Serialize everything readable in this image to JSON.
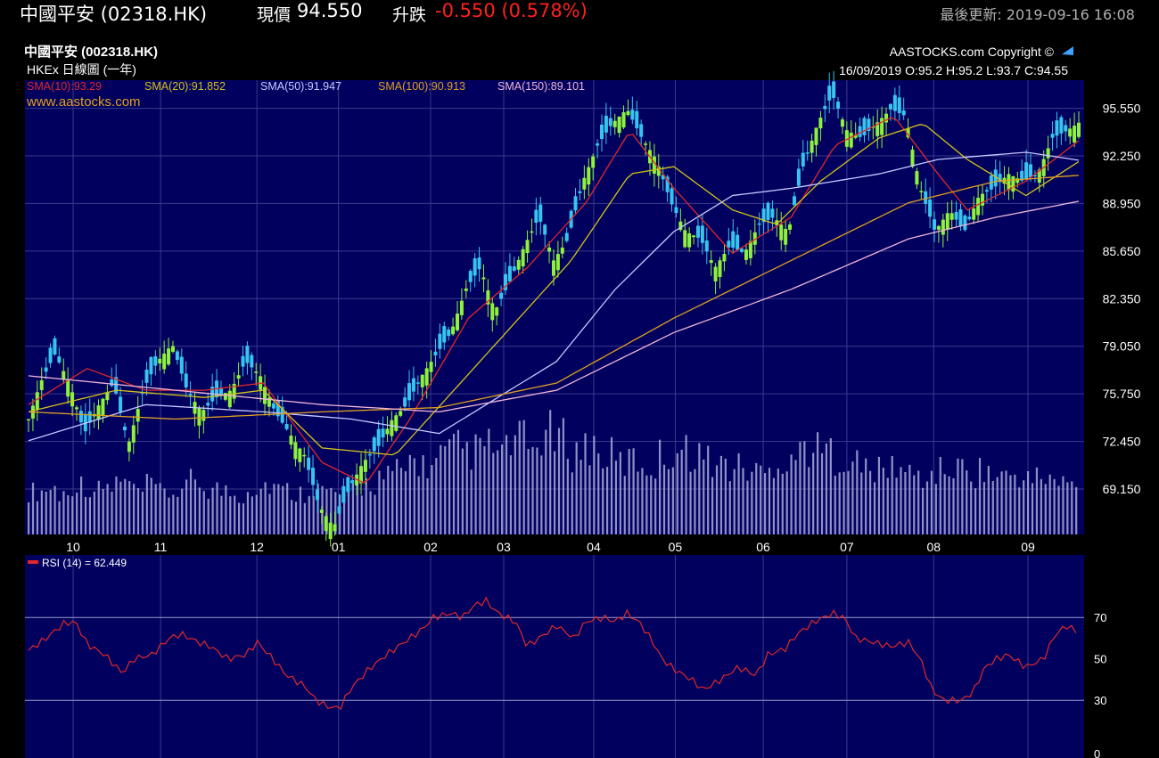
{
  "header": {
    "stock_name": "中國平安 (02318.HK)",
    "price_label": "現價",
    "price": "94.550",
    "change_label": "升跌",
    "change": "-0.550 (0.578%)",
    "last_update": "最後更新: 2019-09-16 16:08"
  },
  "chart_info": {
    "title": "中國平安 (002318.HK)",
    "subtitle": "HKEx 日線圖 (一年)",
    "copyright": "AASTOCKS.com Copyright ©",
    "ohlc": "16/09/2019   O:95.2  H:95.2  L:93.7  C:94.55",
    "website": "www.aastocks.com",
    "sma_legend": [
      {
        "text": "SMA(10):93.29",
        "color": "#e0282a"
      },
      {
        "text": "SMA(20):91.852",
        "color": "#d4c21a"
      },
      {
        "text": "SMA(50):91.947",
        "color": "#c6c8ff"
      },
      {
        "text": "SMA(100):90.913",
        "color": "#e0a020"
      },
      {
        "text": "SMA(150):89.101",
        "color": "#f0b6d8"
      }
    ],
    "rsi_label": "RSI (14)  = 62.449"
  },
  "colors": {
    "background": "#000000",
    "plot_bg": "#01005e",
    "grid": "#3a3a8c",
    "up_candle": "#8ef23a",
    "down_candle": "#37c5f0",
    "volume": "#a9a9d8",
    "rsi_line": "#e0282a"
  },
  "chart_data": [
    {
      "type": "candlestick",
      "xaxis": [
        "10",
        "11",
        "12",
        "01",
        "02",
        "03",
        "04",
        "05",
        "06",
        "07",
        "08",
        "09"
      ],
      "yaxis_ticks": [
        "95.550",
        "92.250",
        "88.950",
        "85.650",
        "82.350",
        "79.050",
        "75.750",
        "72.450",
        "69.150"
      ],
      "ylim": [
        66.0,
        97.5
      ],
      "close_path": [
        [
          0,
          74.0
        ],
        [
          4,
          76.5
        ],
        [
          9,
          78.5
        ],
        [
          14,
          76.5
        ],
        [
          19,
          73.0
        ],
        [
          24,
          75.0
        ],
        [
          29,
          76.5
        ],
        [
          34,
          72.2
        ],
        [
          39,
          76.0
        ],
        [
          44,
          78.0
        ],
        [
          49,
          79.2
        ],
        [
          54,
          76.0
        ],
        [
          59,
          74.5
        ],
        [
          64,
          75.5
        ],
        [
          69,
          76.0
        ],
        [
          74,
          78.0
        ],
        [
          79,
          77.0
        ],
        [
          84,
          74.5
        ],
        [
          89,
          73.0
        ],
        [
          94,
          71.5
        ],
        [
          99,
          68.0
        ],
        [
          104,
          66.5
        ],
        [
          109,
          69.0
        ],
        [
          114,
          71.0
        ],
        [
          119,
          72.0
        ],
        [
          124,
          74.0
        ],
        [
          129,
          75.0
        ],
        [
          134,
          77.0
        ],
        [
          139,
          78.5
        ],
        [
          144,
          80.0
        ],
        [
          149,
          83.0
        ],
        [
          154,
          84.5
        ],
        [
          159,
          81.5
        ],
        [
          164,
          83.5
        ],
        [
          169,
          86.0
        ],
        [
          174,
          88.0
        ],
        [
          179,
          85.0
        ],
        [
          184,
          86.5
        ],
        [
          189,
          90.5
        ],
        [
          194,
          93.0
        ],
        [
          199,
          94.5
        ],
        [
          204,
          95.5
        ],
        [
          209,
          93.5
        ],
        [
          214,
          92.0
        ],
        [
          219,
          89.0
        ],
        [
          224,
          87.0
        ],
        [
          229,
          86.5
        ],
        [
          234,
          84.5
        ],
        [
          239,
          86.0
        ],
        [
          244,
          85.5
        ],
        [
          249,
          87.5
        ],
        [
          254,
          88.0
        ],
        [
          259,
          87.0
        ],
        [
          264,
          91.5
        ],
        [
          269,
          94.5
        ],
        [
          274,
          96.5
        ],
        [
          279,
          94.0
        ],
        [
          284,
          93.5
        ],
        [
          289,
          94.5
        ],
        [
          294,
          95.5
        ],
        [
          299,
          95.0
        ],
        [
          304,
          90.0
        ],
        [
          309,
          87.0
        ],
        [
          314,
          88.5
        ],
        [
          319,
          87.0
        ],
        [
          324,
          89.5
        ],
        [
          329,
          90.0
        ],
        [
          334,
          91.0
        ],
        [
          339,
          90.5
        ],
        [
          344,
          91.0
        ],
        [
          349,
          93.5
        ],
        [
          354,
          94.0
        ],
        [
          358,
          94.55
        ]
      ],
      "sma": [
        {
          "name": "SMA(10)",
          "points": [
            [
              0,
              75
            ],
            [
              20,
              77.5
            ],
            [
              40,
              76
            ],
            [
              60,
              76
            ],
            [
              80,
              76.5
            ],
            [
              100,
              71
            ],
            [
              115,
              69.5
            ],
            [
              130,
              74
            ],
            [
              150,
              81
            ],
            [
              170,
              84.5
            ],
            [
              190,
              89
            ],
            [
              205,
              94
            ],
            [
              220,
              90
            ],
            [
              240,
              85.5
            ],
            [
              260,
              88
            ],
            [
              275,
              93
            ],
            [
              295,
              95
            ],
            [
              310,
              91
            ],
            [
              320,
              88.5
            ],
            [
              340,
              90.5
            ],
            [
              358,
              93.3
            ]
          ]
        },
        {
          "name": "SMA(20)",
          "points": [
            [
              0,
              74.5
            ],
            [
              30,
              76
            ],
            [
              60,
              75.5
            ],
            [
              80,
              76
            ],
            [
              100,
              72
            ],
            [
              125,
              71.5
            ],
            [
              145,
              76
            ],
            [
              165,
              80.5
            ],
            [
              185,
              85
            ],
            [
              205,
              91
            ],
            [
              220,
              91.5
            ],
            [
              240,
              88.5
            ],
            [
              255,
              87.5
            ],
            [
              270,
              90.5
            ],
            [
              290,
              93.5
            ],
            [
              305,
              94.5
            ],
            [
              320,
              92
            ],
            [
              340,
              89.5
            ],
            [
              358,
              91.85
            ]
          ]
        },
        {
          "name": "SMA(50)",
          "points": [
            [
              0,
              72.5
            ],
            [
              40,
              75
            ],
            [
              80,
              74.5
            ],
            [
              110,
              74
            ],
            [
              140,
              73
            ],
            [
              160,
              75.5
            ],
            [
              180,
              78
            ],
            [
              200,
              83
            ],
            [
              220,
              87
            ],
            [
              240,
              89.5
            ],
            [
              260,
              90
            ],
            [
              290,
              91
            ],
            [
              310,
              92
            ],
            [
              340,
              92.5
            ],
            [
              358,
              91.95
            ]
          ]
        },
        {
          "name": "SMA(100)",
          "points": [
            [
              0,
              74.5
            ],
            [
              50,
              74
            ],
            [
              100,
              74.5
            ],
            [
              140,
              74.8
            ],
            [
              180,
              76.5
            ],
            [
              220,
              81
            ],
            [
              260,
              85
            ],
            [
              300,
              89
            ],
            [
              330,
              90.5
            ],
            [
              358,
              90.9
            ]
          ]
        },
        {
          "name": "SMA(150)",
          "points": [
            [
              0,
              77
            ],
            [
              50,
              76
            ],
            [
              100,
              75
            ],
            [
              140,
              74.5
            ],
            [
              180,
              76
            ],
            [
              220,
              80
            ],
            [
              260,
              83
            ],
            [
              300,
              86.5
            ],
            [
              330,
              88
            ],
            [
              358,
              89.1
            ]
          ]
        }
      ]
    },
    {
      "type": "line",
      "name": "RSI (14)",
      "ylim": [
        0,
        100
      ],
      "yaxis_ticks": [
        0,
        30,
        50,
        70
      ],
      "points": [
        [
          0,
          54
        ],
        [
          6,
          60
        ],
        [
          12,
          67
        ],
        [
          16,
          68
        ],
        [
          20,
          57
        ],
        [
          26,
          52
        ],
        [
          32,
          43
        ],
        [
          36,
          50
        ],
        [
          42,
          52
        ],
        [
          48,
          60
        ],
        [
          52,
          62
        ],
        [
          58,
          58
        ],
        [
          62,
          56
        ],
        [
          68,
          50
        ],
        [
          74,
          52
        ],
        [
          78,
          58
        ],
        [
          82,
          52
        ],
        [
          88,
          42
        ],
        [
          94,
          37
        ],
        [
          98,
          30
        ],
        [
          102,
          27
        ],
        [
          106,
          26
        ],
        [
          110,
          36
        ],
        [
          116,
          45
        ],
        [
          122,
          52
        ],
        [
          128,
          58
        ],
        [
          134,
          64
        ],
        [
          138,
          70
        ],
        [
          144,
          72
        ],
        [
          148,
          70
        ],
        [
          152,
          76
        ],
        [
          156,
          78
        ],
        [
          160,
          72
        ],
        [
          166,
          68
        ],
        [
          170,
          56
        ],
        [
          176,
          62
        ],
        [
          180,
          66
        ],
        [
          186,
          60
        ],
        [
          190,
          68
        ],
        [
          196,
          70
        ],
        [
          200,
          68
        ],
        [
          204,
          72
        ],
        [
          208,
          68
        ],
        [
          212,
          60
        ],
        [
          216,
          50
        ],
        [
          220,
          45
        ],
        [
          226,
          40
        ],
        [
          230,
          35
        ],
        [
          236,
          40
        ],
        [
          242,
          46
        ],
        [
          248,
          42
        ],
        [
          252,
          52
        ],
        [
          258,
          55
        ],
        [
          262,
          62
        ],
        [
          268,
          68
        ],
        [
          274,
          72
        ],
        [
          278,
          70
        ],
        [
          282,
          60
        ],
        [
          288,
          58
        ],
        [
          294,
          56
        ],
        [
          300,
          58
        ],
        [
          304,
          50
        ],
        [
          308,
          35
        ],
        [
          312,
          30
        ],
        [
          318,
          30
        ],
        [
          322,
          34
        ],
        [
          326,
          46
        ],
        [
          330,
          50
        ],
        [
          334,
          52
        ],
        [
          340,
          46
        ],
        [
          346,
          50
        ],
        [
          350,
          62
        ],
        [
          354,
          66
        ],
        [
          358,
          62.45
        ]
      ],
      "reference_lines": [
        70,
        30
      ]
    },
    {
      "type": "bar",
      "name": "Volume",
      "description_values": [
        0.3,
        0.32,
        0.28,
        0.35,
        0.31,
        0.33,
        0.36,
        0.3,
        0.34,
        0.29,
        0.31,
        0.38,
        0.32,
        0.3,
        0.27,
        0.33,
        0.35,
        0.31,
        0.29,
        0.34,
        0.3,
        0.28,
        0.33,
        0.36,
        0.4,
        0.44,
        0.52,
        0.48,
        0.55,
        0.6,
        0.58,
        0.62,
        0.57,
        0.65,
        0.6,
        0.7,
        0.66,
        0.58,
        0.62,
        0.55,
        0.5,
        0.52,
        0.48,
        0.55,
        0.6,
        0.58,
        0.52,
        0.49,
        0.47,
        0.45,
        0.43,
        0.52,
        0.56,
        0.62,
        0.58,
        0.55,
        0.5,
        0.46,
        0.44,
        0.48,
        0.42,
        0.4,
        0.44,
        0.46,
        0.43,
        0.45,
        0.4,
        0.42,
        0.38,
        0.4,
        0.36,
        0.35
      ]
    }
  ]
}
